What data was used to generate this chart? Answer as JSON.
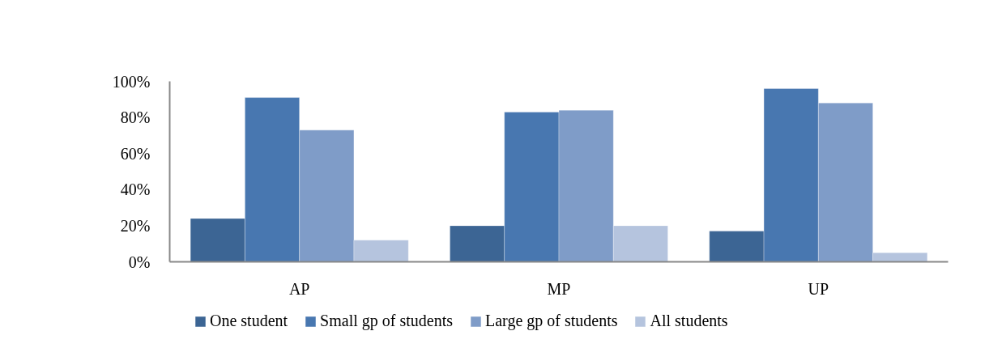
{
  "chart_data": {
    "type": "bar",
    "categories": [
      "AP",
      "MP",
      "UP"
    ],
    "series": [
      {
        "name": "One student",
        "color": "#3c6594",
        "values": [
          24,
          20,
          17
        ]
      },
      {
        "name": "Small gp of students",
        "color": "#4877b0",
        "values": [
          91,
          83,
          96
        ]
      },
      {
        "name": "Large gp of students",
        "color": "#7f9cc8",
        "values": [
          73,
          84,
          88
        ]
      },
      {
        "name": "All students",
        "color": "#b5c4de",
        "values": [
          12,
          20,
          5
        ]
      }
    ],
    "ylim": [
      0,
      100
    ],
    "yticks": [
      {
        "value": 0,
        "label": "0%"
      },
      {
        "value": 20,
        "label": "20%"
      },
      {
        "value": 40,
        "label": "40%"
      },
      {
        "value": 60,
        "label": "60%"
      },
      {
        "value": 80,
        "label": "80%"
      },
      {
        "value": 100,
        "label": "100%"
      }
    ],
    "grid": false,
    "legend": "bottom"
  }
}
